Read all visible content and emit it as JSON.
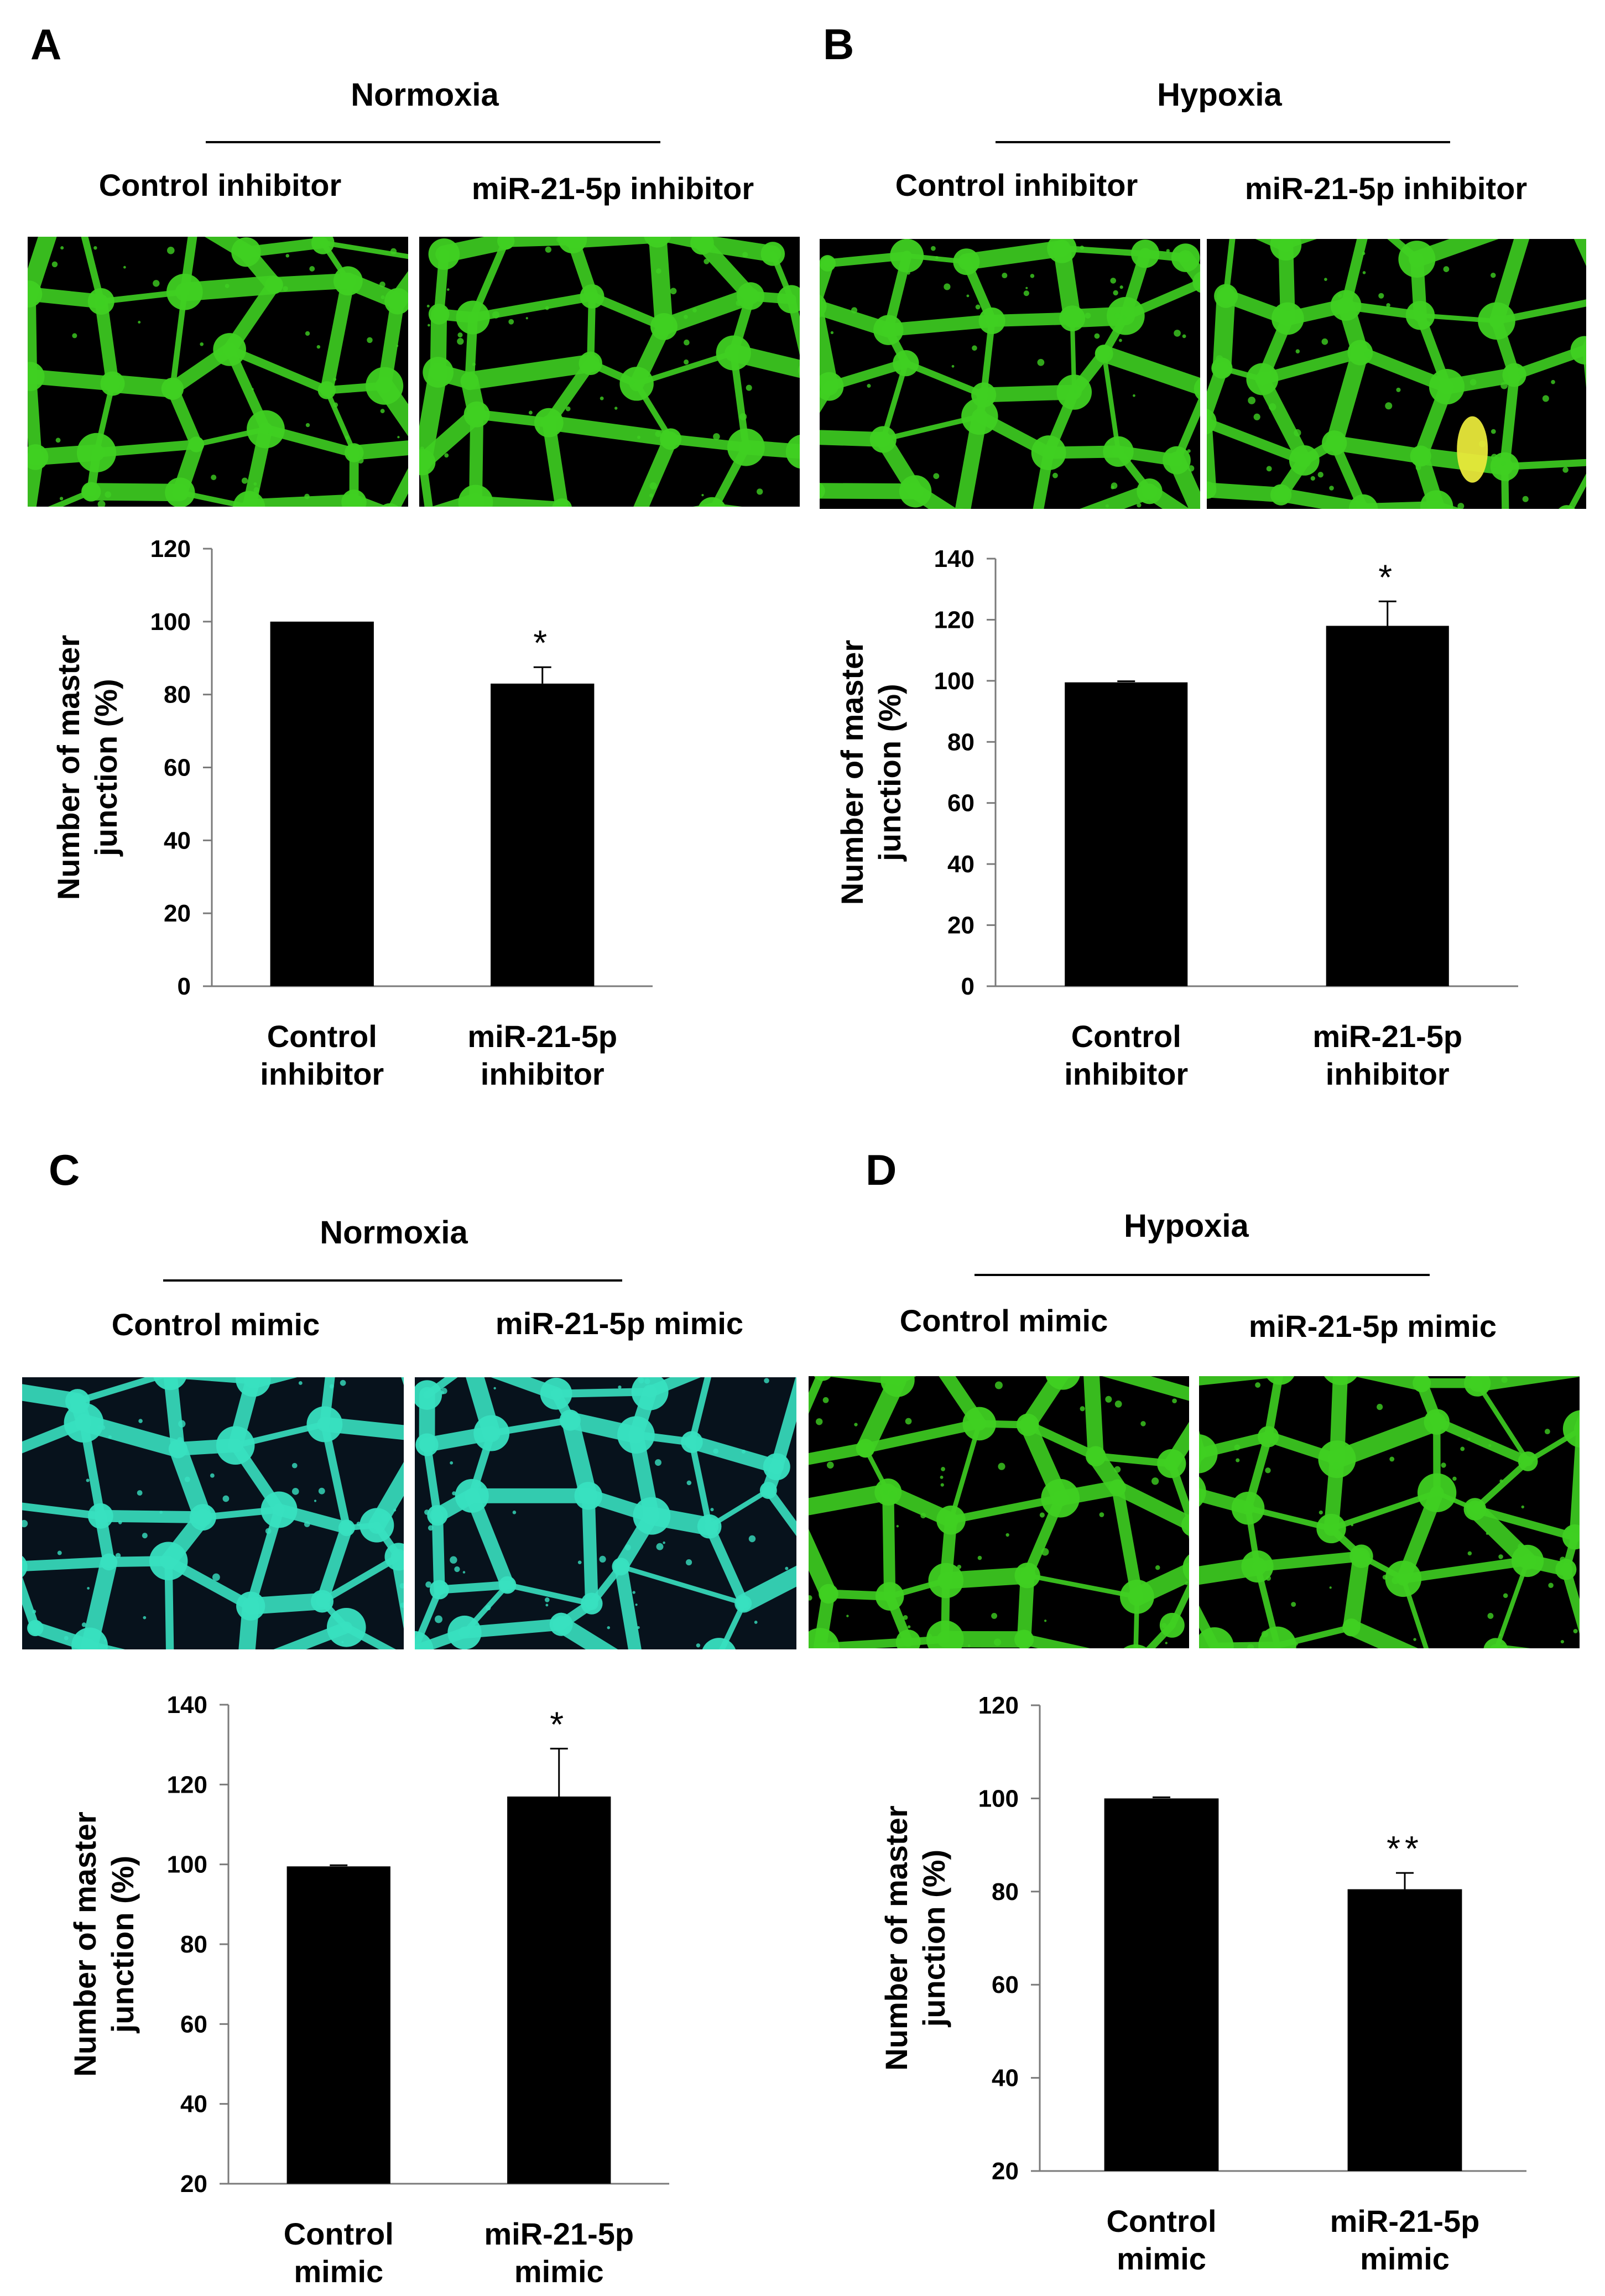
{
  "figure": {
    "panels": [
      {
        "letter": "A",
        "condition": "Normoxia",
        "image_labels": [
          "Control inhibitor",
          "miR-21-5p inhibitor"
        ],
        "image_tint": "#3fd022",
        "image_background": "#000000"
      },
      {
        "letter": "B",
        "condition": "Hypoxia",
        "image_labels": [
          "Control inhibitor",
          "miR-21-5p inhibitor"
        ],
        "image_tint": "#3fd022",
        "image_background": "#000000"
      },
      {
        "letter": "C",
        "condition": "Normoxia",
        "image_labels": [
          "Control mimic",
          "miR-21-5p mimic"
        ],
        "image_tint": "#38e0c0",
        "image_background": "#07121c"
      },
      {
        "letter": "D",
        "condition": "Hypoxia",
        "image_labels": [
          "Control mimic",
          "miR-21-5p mimic"
        ],
        "image_tint": "#3fd022",
        "image_background": "#000000"
      }
    ]
  },
  "chart_data": [
    {
      "type": "bar",
      "panel": "A",
      "categories": [
        "Control inhibitor",
        "miR-21-5p inhibitor"
      ],
      "category_lines": [
        [
          "Control",
          "inhibitor"
        ],
        [
          "miR-21-5p",
          "inhibitor"
        ]
      ],
      "values": [
        100,
        83
      ],
      "errors": [
        0,
        4.5
      ],
      "significance": [
        "",
        "*"
      ],
      "ylabel": "Number of master junction (%)",
      "ylabel_lines": [
        "Number of master",
        "junction (%)"
      ],
      "ylim": [
        0,
        120
      ],
      "yticks": [
        0,
        20,
        40,
        60,
        80,
        100,
        120
      ],
      "bar_color": "#000000"
    },
    {
      "type": "bar",
      "panel": "B",
      "categories": [
        "Control inhibitor",
        "miR-21-5p inhibitor"
      ],
      "category_lines": [
        [
          "Control",
          "inhibitor"
        ],
        [
          "miR-21-5p",
          "inhibitor"
        ]
      ],
      "values": [
        99.5,
        118
      ],
      "errors": [
        0.5,
        8
      ],
      "significance": [
        "",
        "*"
      ],
      "ylabel": "Number of master junction (%)",
      "ylabel_lines": [
        "Number of master",
        "junction (%)"
      ],
      "ylim": [
        0,
        140
      ],
      "yticks": [
        0,
        20,
        40,
        60,
        80,
        100,
        120,
        140
      ],
      "bar_color": "#000000"
    },
    {
      "type": "bar",
      "panel": "C",
      "categories": [
        "Control mimic",
        "miR-21-5p mimic"
      ],
      "category_lines": [
        [
          "Control",
          "mimic"
        ],
        [
          "miR-21-5p",
          "mimic"
        ]
      ],
      "values": [
        99.5,
        117
      ],
      "errors": [
        0.3,
        12
      ],
      "significance": [
        "",
        "*"
      ],
      "ylabel": "Number of master junction (%)",
      "ylabel_lines": [
        "Number of master",
        "junction (%)"
      ],
      "ylim": [
        20,
        140
      ],
      "yticks": [
        20,
        40,
        60,
        80,
        100,
        120,
        140
      ],
      "bar_color": "#000000"
    },
    {
      "type": "bar",
      "panel": "D",
      "categories": [
        "Control mimic",
        "miR-21-5p mimic"
      ],
      "category_lines": [
        [
          "Control",
          "mimic"
        ],
        [
          "miR-21-5p",
          "mimic"
        ]
      ],
      "values": [
        100,
        80.5
      ],
      "errors": [
        0.3,
        3.5
      ],
      "significance": [
        "",
        "**"
      ],
      "ylabel": "Number of master junction (%)",
      "ylabel_lines": [
        "Number of master",
        "junction (%)"
      ],
      "ylim": [
        20,
        120
      ],
      "yticks": [
        20,
        40,
        60,
        80,
        100,
        120
      ],
      "bar_color": "#000000"
    }
  ]
}
